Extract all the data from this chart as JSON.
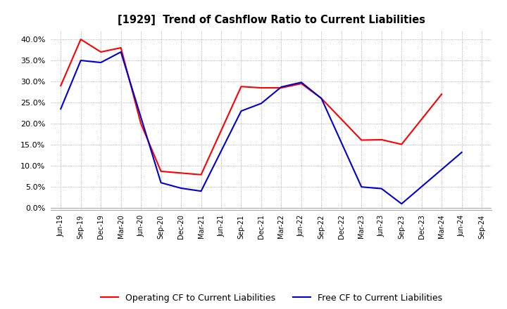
{
  "title": "[1929]  Trend of Cashflow Ratio to Current Liabilities",
  "x_labels": [
    "Jun-19",
    "Sep-19",
    "Dec-19",
    "Mar-20",
    "Jun-20",
    "Sep-20",
    "Dec-20",
    "Mar-21",
    "Jun-21",
    "Sep-21",
    "Dec-21",
    "Mar-22",
    "Jun-22",
    "Sep-22",
    "Dec-22",
    "Mar-23",
    "Jun-23",
    "Sep-23",
    "Dec-23",
    "Mar-24",
    "Jun-24",
    "Sep-24"
  ],
  "op_x": [
    0,
    1,
    2,
    3,
    4,
    5,
    6,
    7,
    9,
    10,
    11,
    12,
    13,
    15,
    16,
    17,
    19
  ],
  "op_y": [
    0.29,
    0.4,
    0.37,
    0.38,
    0.2,
    0.087,
    0.083,
    0.079,
    0.288,
    0.285,
    0.285,
    0.295,
    0.26,
    0.161,
    0.162,
    0.151,
    0.27
  ],
  "free_x": [
    0,
    1,
    2,
    3,
    5,
    6,
    7,
    9,
    10,
    11,
    12,
    13,
    15,
    16,
    17,
    20
  ],
  "free_y": [
    0.235,
    0.35,
    0.345,
    0.37,
    0.06,
    0.047,
    0.04,
    0.23,
    0.248,
    0.287,
    0.298,
    0.26,
    0.05,
    0.046,
    0.01,
    0.132
  ],
  "ylim": [
    -0.005,
    0.42
  ],
  "yticks": [
    0.0,
    0.05,
    0.1,
    0.15,
    0.2,
    0.25,
    0.3,
    0.35,
    0.4
  ],
  "operating_color": "#ff0000",
  "free_color": "#0000cc",
  "background_color": "#ffffff",
  "grid_color": "#999999",
  "legend_op": "Operating CF to Current Liabilities",
  "legend_free": "Free CF to Current Liabilities"
}
